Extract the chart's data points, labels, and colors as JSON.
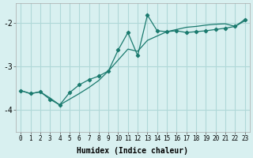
{
  "xlabel": "Humidex (Indice chaleur)",
  "ylabel": "",
  "bg_color": "#d8f0f0",
  "grid_color": "#b0d8d8",
  "line_color": "#1a7a6e",
  "xlim": [
    -0.5,
    23.5
  ],
  "ylim": [
    -4.5,
    -1.55
  ],
  "yticks": [
    -4,
    -3,
    -2
  ],
  "xticks": [
    0,
    1,
    2,
    3,
    4,
    5,
    6,
    7,
    8,
    9,
    10,
    11,
    12,
    13,
    14,
    15,
    16,
    17,
    18,
    19,
    20,
    21,
    22,
    23
  ],
  "series1_x": [
    0,
    1,
    2,
    3,
    4,
    5,
    6,
    7,
    8,
    9,
    10,
    11,
    12,
    13,
    14,
    15,
    16,
    17,
    18,
    19,
    20,
    21,
    22,
    23
  ],
  "series1_y": [
    -3.55,
    -3.62,
    -3.58,
    -3.72,
    -3.88,
    -3.75,
    -3.62,
    -3.48,
    -3.32,
    -3.1,
    -2.85,
    -2.6,
    -2.65,
    -2.4,
    -2.3,
    -2.2,
    -2.15,
    -2.1,
    -2.08,
    -2.05,
    -2.03,
    -2.02,
    -2.08,
    -1.95
  ],
  "series2_x": [
    0,
    1,
    2,
    3,
    4,
    5,
    6,
    7,
    8,
    9,
    10,
    11,
    12,
    13,
    14,
    15,
    16,
    17,
    18,
    19,
    20,
    21,
    22,
    23
  ],
  "series2_y": [
    -3.55,
    -3.62,
    -3.58,
    -3.75,
    -3.88,
    -3.6,
    -3.42,
    -3.3,
    -3.22,
    -3.1,
    -2.62,
    -2.22,
    -2.75,
    -1.82,
    -2.18,
    -2.2,
    -2.18,
    -2.22,
    -2.2,
    -2.18,
    -2.15,
    -2.12,
    -2.08,
    -1.92
  ]
}
